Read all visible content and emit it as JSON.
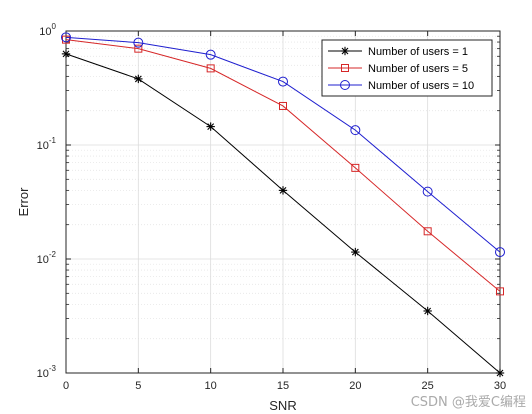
{
  "chart_data": {
    "type": "line",
    "xlabel": "SNR",
    "ylabel": "Error",
    "xscale": "linear",
    "yscale": "log",
    "xlim": [
      0,
      30
    ],
    "ylim": [
      0.001,
      1
    ],
    "xticks": [
      0,
      5,
      10,
      15,
      20,
      25,
      30
    ],
    "yticks": [
      {
        "value": 0.001,
        "base": "10",
        "exp": "-3"
      },
      {
        "value": 0.01,
        "base": "10",
        "exp": "-2"
      },
      {
        "value": 0.1,
        "base": "10",
        "exp": "-1"
      },
      {
        "value": 1,
        "base": "10",
        "exp": "0"
      }
    ],
    "grid": true,
    "minor_grid": true,
    "legend_position": "top-right",
    "x": [
      0,
      5,
      10,
      15,
      20,
      25,
      30
    ],
    "series": [
      {
        "name": "Number of users = 1",
        "color": "#000000",
        "marker": "asterisk",
        "values": [
          0.63,
          0.38,
          0.145,
          0.04,
          0.0115,
          0.0035,
          0.001
        ]
      },
      {
        "name": "Number of users = 5",
        "color": "#d62728",
        "marker": "square",
        "values": [
          0.84,
          0.7,
          0.47,
          0.22,
          0.063,
          0.0175,
          0.0052
        ]
      },
      {
        "name": "Number of users = 10",
        "color": "#1f1fcf",
        "marker": "circle",
        "values": [
          0.88,
          0.79,
          0.62,
          0.36,
          0.135,
          0.039,
          0.0115
        ]
      }
    ]
  },
  "watermark": "CSDN @我爱C编程"
}
